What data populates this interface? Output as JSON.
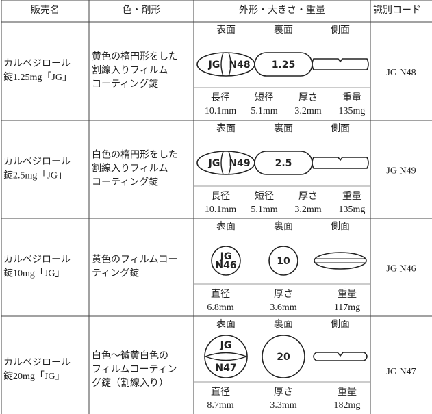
{
  "header": [
    "販売名",
    "色・剤形",
    "外形・大きさ・重量",
    "識別コード"
  ],
  "rows": [
    {
      "name": [
        "カルベジロール",
        "錠1.25mg「JG」"
      ],
      "description": [
        "黄色の楕円形をした",
        "割線入りフィルム",
        "コーティング錠"
      ],
      "views": [
        "表面",
        "裏面",
        "側面"
      ],
      "front": [
        "JG",
        "N48"
      ],
      "back": [
        "1.25"
      ],
      "dims": [
        {
          "label": "長径",
          "value": "10.1mm"
        },
        {
          "label": "短径",
          "value": "5.1mm"
        },
        {
          "label": "厚さ",
          "value": "3.2mm"
        },
        {
          "label": "重量",
          "value": "135mg"
        }
      ],
      "code": "JG N48"
    },
    {
      "name": [
        "カルベジロール",
        "錠2.5mg「JG」"
      ],
      "description": [
        "白色の楕円形をした",
        "割線入りフィルム",
        "コーティング錠"
      ],
      "views": [
        "表面",
        "裏面",
        "側面"
      ],
      "front": [
        "JG",
        "N49"
      ],
      "back": [
        "2.5"
      ],
      "dims": [
        {
          "label": "長径",
          "value": "10.1mm"
        },
        {
          "label": "短径",
          "value": "5.1mm"
        },
        {
          "label": "厚さ",
          "value": "3.2mm"
        },
        {
          "label": "重量",
          "value": "135mg"
        }
      ],
      "code": "JG N49"
    },
    {
      "name": [
        "カルベジロール",
        "錠10mg「JG」"
      ],
      "description": [
        "黄色のフィルムコー",
        "ティング錠"
      ],
      "views": [
        "表面",
        "裏面",
        "側面"
      ],
      "front": [
        "JG",
        "N46"
      ],
      "back": [
        "10"
      ],
      "dims": [
        {
          "label": "直径",
          "value": "6.8mm"
        },
        {
          "label": "厚さ",
          "value": "3.6mm"
        },
        {
          "label": "重量",
          "value": "117mg"
        }
      ],
      "code": "JG N46"
    },
    {
      "name": [
        "カルベジロール",
        "錠20mg「JG」"
      ],
      "description": [
        "白色～微黄白色の",
        "フィルムコーティン",
        "グ錠（割線入り）"
      ],
      "views": [
        "表面",
        "裏面",
        "側面"
      ],
      "front": [
        "JG",
        "N47"
      ],
      "back": [
        "20"
      ],
      "dims": [
        {
          "label": "直径",
          "value": "8.7mm"
        },
        {
          "label": "厚さ",
          "value": "3.3mm"
        },
        {
          "label": "重量",
          "value": "182mg"
        }
      ],
      "code": "JG N47"
    }
  ]
}
